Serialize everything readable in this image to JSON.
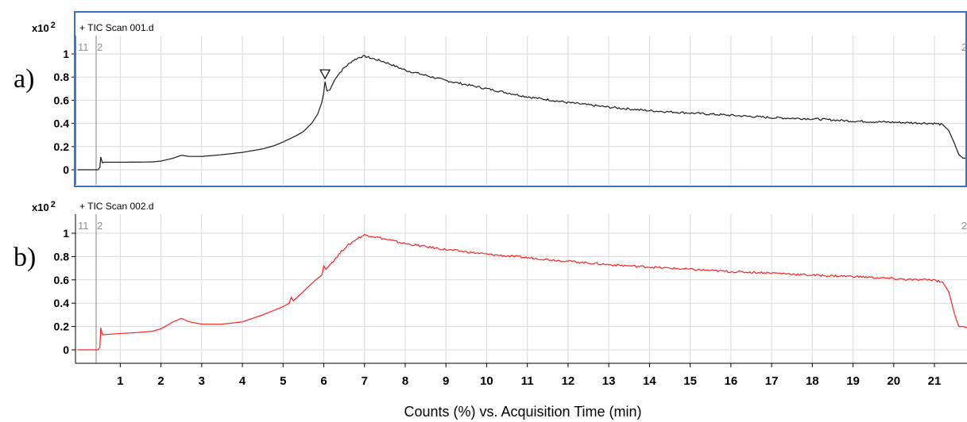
{
  "chart_data": [
    {
      "type": "line",
      "panel_label": "a)",
      "title": "+ TIC Scan 001.d",
      "scale_label": "x10",
      "scale_exp": "2",
      "marker_labels": [
        "11",
        "2"
      ],
      "right_edge_label": "2",
      "peak_marker": "inverted-triangle",
      "xlim": [
        -0.1,
        21.8
      ],
      "ylim": [
        -0.12,
        1.08
      ],
      "yticks": [
        "1",
        "0.8",
        "0.6",
        "0.4",
        "0.2",
        "0"
      ],
      "ytick_values": [
        1,
        0.8,
        0.6,
        0.4,
        0.2,
        0
      ],
      "xticks": [
        1,
        2,
        3,
        4,
        5,
        6,
        7,
        8,
        9,
        10,
        11,
        12,
        13,
        14,
        15,
        16,
        17,
        18,
        19,
        20,
        21
      ],
      "grid": true,
      "framed": true,
      "frame_color": "#3d6fc3",
      "series": [
        {
          "color": "#1a1a1a",
          "x": [
            -0.05,
            0.45,
            0.5,
            0.52,
            0.56,
            0.6,
            1,
            1.5,
            1.8,
            2,
            2.3,
            2.5,
            2.7,
            3,
            3.5,
            4,
            4.5,
            4.8,
            5,
            5.3,
            5.5,
            5.7,
            5.85,
            5.95,
            6.0,
            6.03,
            6.08,
            6.15,
            6.3,
            6.5,
            6.7,
            6.9,
            7.0,
            7.2,
            7.5,
            8,
            9,
            10,
            11,
            12,
            13,
            14,
            15,
            16,
            17,
            18,
            19,
            20,
            20.5,
            21,
            21.2,
            21.35,
            21.5,
            21.6,
            21.7,
            21.8
          ],
          "y": [
            0,
            0,
            0.02,
            0.11,
            0.06,
            0.065,
            0.065,
            0.066,
            0.068,
            0.075,
            0.1,
            0.125,
            0.115,
            0.115,
            0.13,
            0.15,
            0.18,
            0.21,
            0.24,
            0.29,
            0.33,
            0.4,
            0.48,
            0.58,
            0.67,
            0.76,
            0.68,
            0.69,
            0.8,
            0.88,
            0.94,
            0.975,
            0.98,
            0.96,
            0.93,
            0.86,
            0.77,
            0.7,
            0.63,
            0.58,
            0.54,
            0.51,
            0.49,
            0.47,
            0.45,
            0.44,
            0.42,
            0.41,
            0.405,
            0.4,
            0.39,
            0.34,
            0.22,
            0.13,
            0.1,
            0.1
          ]
        }
      ]
    },
    {
      "type": "line",
      "panel_label": "b)",
      "title": "+ TIC Scan 002.d",
      "scale_label": "x10",
      "scale_exp": "2",
      "marker_labels": [
        "11",
        "2"
      ],
      "right_edge_label": "2",
      "xlim": [
        -0.1,
        21.8
      ],
      "ylim": [
        -0.1,
        1.08
      ],
      "yticks": [
        "1",
        "0.8",
        "0.6",
        "0.4",
        "0.2",
        "0"
      ],
      "ytick_values": [
        1,
        0.8,
        0.6,
        0.4,
        0.2,
        0
      ],
      "xticks": [
        1,
        2,
        3,
        4,
        5,
        6,
        7,
        8,
        9,
        10,
        11,
        12,
        13,
        14,
        15,
        16,
        17,
        18,
        19,
        20,
        21
      ],
      "xlabel": "Counts (%) vs. Acquisition Time (min)",
      "grid": true,
      "framed": false,
      "series": [
        {
          "color": "#ff2020",
          "x": [
            -0.05,
            0.45,
            0.5,
            0.52,
            0.56,
            0.6,
            1,
            1.5,
            1.8,
            2,
            2.3,
            2.5,
            2.7,
            3,
            3.5,
            4,
            4.5,
            5,
            5.15,
            5.2,
            5.25,
            5.5,
            5.8,
            5.95,
            6.0,
            6.05,
            6.1,
            6.3,
            6.5,
            6.8,
            7.0,
            7.2,
            7.5,
            8,
            9,
            10,
            11,
            12,
            13,
            14,
            15,
            16,
            17,
            18,
            19,
            20,
            20.5,
            21,
            21.2,
            21.35,
            21.5,
            21.6,
            21.7,
            21.8
          ],
          "y": [
            0,
            0,
            0.02,
            0.19,
            0.13,
            0.13,
            0.14,
            0.15,
            0.16,
            0.18,
            0.24,
            0.27,
            0.24,
            0.22,
            0.22,
            0.24,
            0.3,
            0.37,
            0.4,
            0.45,
            0.42,
            0.5,
            0.6,
            0.64,
            0.72,
            0.69,
            0.71,
            0.79,
            0.87,
            0.95,
            0.985,
            0.975,
            0.95,
            0.91,
            0.86,
            0.82,
            0.79,
            0.76,
            0.73,
            0.71,
            0.69,
            0.67,
            0.66,
            0.64,
            0.63,
            0.61,
            0.6,
            0.6,
            0.58,
            0.5,
            0.3,
            0.2,
            0.2,
            0.19
          ]
        }
      ]
    }
  ]
}
